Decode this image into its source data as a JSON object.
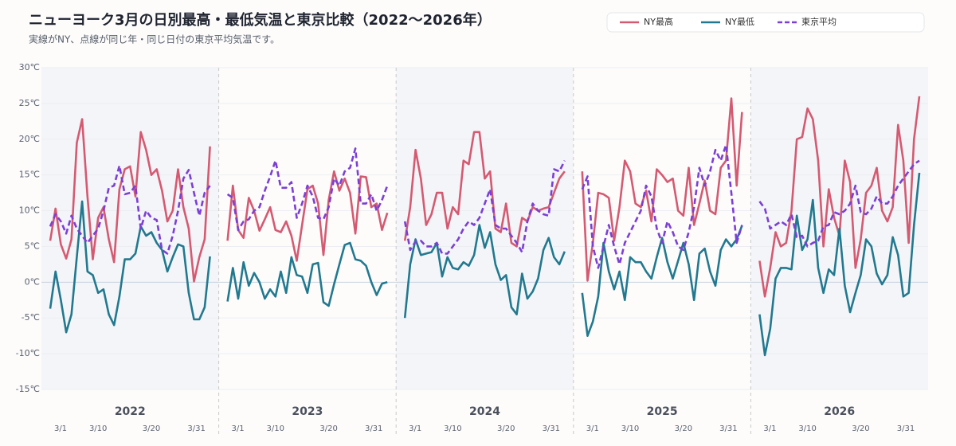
{
  "chart_data": {
    "type": "line",
    "title": "ニューヨーク3月の日別最高・最低気温と東京比較（2022〜2026年）",
    "subtitle": "実線がNY、点線が同じ年・同じ日付の東京平均気温です。",
    "ylim": [
      -15,
      30
    ],
    "yticks": [
      {
        "value": 30,
        "label": "30℃"
      },
      {
        "value": 25,
        "label": "25℃"
      },
      {
        "value": 20,
        "label": "20℃"
      },
      {
        "value": 15,
        "label": "15℃"
      },
      {
        "value": 10,
        "label": "10℃"
      },
      {
        "value": 5,
        "label": "5℃"
      },
      {
        "value": 0,
        "label": "0℃"
      },
      {
        "value": -5,
        "label": "-5℃"
      },
      {
        "value": -10,
        "label": "-10℃"
      },
      {
        "value": -15,
        "label": "-15℃"
      }
    ],
    "grid": true,
    "years": [
      "2022",
      "2023",
      "2024",
      "2025",
      "2026"
    ],
    "categories": [
      "3/1",
      null,
      null,
      null,
      null,
      null,
      null,
      null,
      null,
      "3/10",
      null,
      null,
      null,
      null,
      null,
      null,
      null,
      null,
      null,
      "3/20",
      null,
      null,
      null,
      null,
      null,
      null,
      null,
      null,
      null,
      null,
      "3/31"
    ],
    "series": [
      {
        "name": "NY最高",
        "color": "#d45a72",
        "dashed": false,
        "values": [
          [
            5.8,
            10.3,
            5.3,
            3.3,
            6,
            19.5,
            22.8,
            12,
            3.2,
            9,
            10.5,
            6,
            2.8,
            13,
            15.8,
            16.2,
            12,
            21,
            18.5,
            15,
            15.8,
            12.8,
            8.5,
            10,
            15.8,
            10.5,
            7.5,
            0.1,
            3.5,
            6,
            19
          ],
          [
            5.8,
            13.5,
            7.3,
            6.2,
            11.8,
            10,
            7.2,
            8.8,
            10.5,
            7.3,
            7,
            8.5,
            6.5,
            3,
            8,
            13,
            13.5,
            11,
            3.8,
            11.5,
            15.5,
            12.8,
            14.5,
            12.5,
            6.8,
            14.8,
            14.7,
            10.5,
            11,
            7.3,
            9.7
          ],
          [
            5.8,
            10.5,
            18.5,
            14.5,
            8,
            9.5,
            12.5,
            12.5,
            7.5,
            10.5,
            9.5,
            17,
            16.5,
            21,
            21,
            14.5,
            15.5,
            7.5,
            7,
            11,
            5.5,
            5,
            9,
            8.5,
            10.5,
            10,
            10.3,
            10.5,
            12.5,
            14.5,
            15.5
          ],
          [
            15.5,
            0.2,
            5.5,
            12.5,
            12.3,
            11.8,
            5.8,
            10.5,
            17,
            15.5,
            11,
            10.5,
            12.8,
            8.5,
            15.8,
            15,
            14,
            14.5,
            10,
            9.3,
            16,
            8,
            11,
            14.2,
            10,
            9.5,
            16,
            17,
            25.7,
            13.5,
            23.8
          ],
          [
            3,
            -2,
            2,
            7,
            5,
            5.5,
            10,
            20,
            20.3,
            24.3,
            22.8,
            17,
            5,
            13,
            9,
            6.5,
            17,
            14,
            2,
            6,
            12.5,
            13.5,
            16,
            10,
            8.5,
            10.5,
            22,
            17,
            5.5,
            20,
            26
          ]
        ]
      },
      {
        "name": "NY最低",
        "color": "#22798f",
        "dashed": false,
        "values": [
          [
            -3.7,
            1.5,
            -2.5,
            -7,
            -4.5,
            3.5,
            11.3,
            1.5,
            1,
            -1.5,
            -1,
            -4.5,
            -6,
            -2,
            3.2,
            3.2,
            4,
            7.8,
            6.5,
            7,
            5.5,
            4.5,
            1.5,
            3.5,
            5.3,
            5,
            -1.5,
            -5.2,
            -5.2,
            -3.5,
            3.6
          ],
          [
            -2.7,
            2,
            -2.3,
            2.8,
            -0.5,
            1.3,
            0,
            -2.3,
            -1,
            -2,
            1.5,
            -1.5,
            3.5,
            1,
            0.8,
            -1.5,
            2.5,
            2.7,
            -2.8,
            -3.3,
            -0.3,
            2.5,
            5.2,
            5.5,
            3.2,
            3,
            2.3,
            0,
            -1.8,
            -0.2,
            0
          ],
          [
            -5,
            2.5,
            6,
            3.8,
            4,
            4.2,
            5.5,
            0.8,
            3.5,
            2,
            1.8,
            2.8,
            2.3,
            3.8,
            8,
            4.8,
            7,
            2.5,
            0.3,
            1,
            -3.5,
            -4.5,
            1.2,
            -2.3,
            -1.3,
            0.5,
            4.5,
            6.2,
            3.5,
            2.5,
            4.3
          ],
          [
            -1.5,
            -7.5,
            -5.5,
            -2,
            5.5,
            1.5,
            -1,
            1.5,
            -2.5,
            3.5,
            2.8,
            2.8,
            1.5,
            0.5,
            3.5,
            6.2,
            2.8,
            0.5,
            3,
            5.5,
            2.5,
            -2.5,
            4,
            4.7,
            1.5,
            -0.5,
            4.5,
            6,
            5,
            6,
            7.9
          ],
          [
            -4.5,
            -10.2,
            -6.5,
            0.5,
            2,
            2,
            1.8,
            9.3,
            4.5,
            6,
            11.5,
            2,
            -1.5,
            1.8,
            1,
            7.5,
            -0.5,
            -4.2,
            -1.5,
            1,
            6,
            5,
            1.2,
            -0.3,
            1,
            6.3,
            3.8,
            -2,
            -1.5,
            8,
            15.3
          ]
        ]
      },
      {
        "name": "東京平均",
        "color": "#7b3fd6",
        "dashed": true,
        "values": [
          [
            7.8,
            9.5,
            8.5,
            6.8,
            9.3,
            7.5,
            6.5,
            5.5,
            6.5,
            7.5,
            10,
            13.2,
            13.5,
            16.3,
            12.3,
            12.5,
            13.5,
            7.5,
            10,
            9,
            8.7,
            4.5,
            4,
            6.5,
            10,
            14.5,
            15.7,
            12.5,
            9.3,
            12.5,
            13.5
          ],
          [
            12.3,
            11.8,
            7.3,
            8.5,
            8.8,
            10,
            10.5,
            12.8,
            14.8,
            17,
            13.2,
            13.2,
            14,
            9,
            11,
            13.5,
            12,
            9,
            8.8,
            10.5,
            14.5,
            13.5,
            15.5,
            16,
            18.7,
            11,
            11,
            12.3,
            10,
            11.5,
            13.5
          ],
          [
            8.5,
            4.5,
            5.7,
            5.8,
            5,
            5,
            5.5,
            4,
            4,
            5,
            6,
            7.5,
            8.5,
            8,
            9,
            11,
            13,
            8,
            7.5,
            7.5,
            6.5,
            5.5,
            4.2,
            8.5,
            11,
            10,
            9.5,
            9.3,
            15.8,
            15.5,
            17
          ],
          [
            13,
            14.8,
            5,
            2,
            5,
            8,
            5,
            2.5,
            5.5,
            7,
            8.5,
            10,
            13.5,
            12,
            7.5,
            5.5,
            8.5,
            7,
            5,
            4.5,
            7,
            10.5,
            16,
            13.5,
            15.5,
            18.5,
            17,
            19.2,
            12.5,
            5.5,
            8
          ],
          [
            11.3,
            10.3,
            7.5,
            8,
            8.5,
            8,
            9.5,
            6.3,
            6.5,
            5,
            5.5,
            5.8,
            7.8,
            8,
            9.8,
            9.5,
            10,
            11,
            13.5,
            9.8,
            9.5,
            10.3,
            12,
            11,
            11,
            12,
            13.5,
            14.5,
            15.5,
            16.5,
            17
          ]
        ]
      }
    ]
  }
}
